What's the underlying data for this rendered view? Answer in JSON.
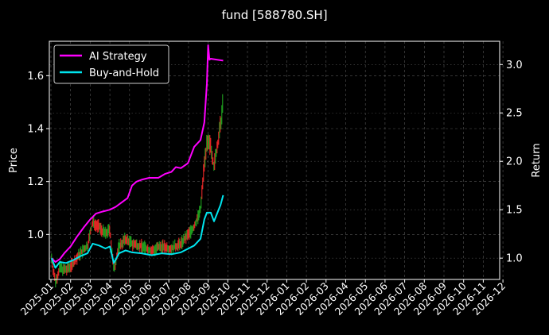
{
  "chart_data": {
    "type": "line",
    "title": "fund [588780.SH]",
    "ylabel_left": "Price",
    "ylabel_right": "Return",
    "left_axis": {
      "ylim": [
        0.83,
        1.73
      ],
      "ticks": [
        1.0,
        1.2,
        1.4,
        1.6
      ],
      "tick_labels": [
        "1.0",
        "1.2",
        "1.4",
        "1.6"
      ]
    },
    "right_axis": {
      "ylim": [
        0.78,
        3.24
      ],
      "ticks": [
        1.0,
        1.5,
        2.0,
        2.5,
        3.0
      ],
      "tick_labels": [
        "1.0",
        "1.5",
        "2.0",
        "2.5",
        "3.0"
      ]
    },
    "x_ticks": [
      "2025-01",
      "2025-02",
      "2025-03",
      "2025-04",
      "2025-05",
      "2025-06",
      "2025-07",
      "2025-08",
      "2025-09",
      "2025-10",
      "2025-11",
      "2025-12",
      "2026-01",
      "2026-02",
      "2026-03",
      "2026-04",
      "2026-05",
      "2026-06",
      "2026-07",
      "2026-08",
      "2026-09",
      "2026-10",
      "2026-11",
      "2026-12"
    ],
    "grid": true,
    "legend_position": "top-left",
    "colors": {
      "ai_strategy": "#ff00ff",
      "buy_and_hold": "#00e5ee",
      "candle_up": "#ff2a2a",
      "candle_down": "#22b022",
      "grid": "#555555"
    },
    "series": [
      {
        "name": "AI Strategy",
        "axis": "right",
        "points": [
          [
            "2025-01-02",
            1.0
          ],
          [
            "2025-01-08",
            0.96
          ],
          [
            "2025-01-15",
            0.99
          ],
          [
            "2025-01-22",
            1.05
          ],
          [
            "2025-02-01",
            1.12
          ],
          [
            "2025-02-10",
            1.22
          ],
          [
            "2025-02-20",
            1.32
          ],
          [
            "2025-03-01",
            1.4
          ],
          [
            "2025-03-10",
            1.46
          ],
          [
            "2025-03-20",
            1.48
          ],
          [
            "2025-04-01",
            1.5
          ],
          [
            "2025-04-10",
            1.53
          ],
          [
            "2025-04-20",
            1.58
          ],
          [
            "2025-04-28",
            1.62
          ],
          [
            "2025-05-05",
            1.75
          ],
          [
            "2025-05-12",
            1.79
          ],
          [
            "2025-05-20",
            1.81
          ],
          [
            "2025-06-01",
            1.83
          ],
          [
            "2025-06-15",
            1.83
          ],
          [
            "2025-06-25",
            1.87
          ],
          [
            "2025-07-05",
            1.89
          ],
          [
            "2025-07-12",
            1.94
          ],
          [
            "2025-07-20",
            1.93
          ],
          [
            "2025-07-31",
            1.98
          ],
          [
            "2025-08-10",
            2.15
          ],
          [
            "2025-08-20",
            2.22
          ],
          [
            "2025-08-26",
            2.4
          ],
          [
            "2025-08-30",
            2.8
          ],
          [
            "2025-09-01",
            3.2
          ],
          [
            "2025-09-03",
            3.05
          ],
          [
            "2025-09-05",
            3.06
          ],
          [
            "2025-09-15",
            3.05
          ],
          [
            "2025-09-24",
            3.04
          ]
        ]
      },
      {
        "name": "Buy-and-Hold",
        "axis": "right",
        "points": [
          [
            "2025-01-02",
            1.0
          ],
          [
            "2025-01-08",
            0.9
          ],
          [
            "2025-01-15",
            0.96
          ],
          [
            "2025-01-25",
            0.95
          ],
          [
            "2025-02-05",
            0.98
          ],
          [
            "2025-02-15",
            1.02
          ],
          [
            "2025-02-25",
            1.05
          ],
          [
            "2025-03-05",
            1.15
          ],
          [
            "2025-03-15",
            1.13
          ],
          [
            "2025-03-25",
            1.1
          ],
          [
            "2025-04-01",
            1.12
          ],
          [
            "2025-04-07",
            0.95
          ],
          [
            "2025-04-15",
            1.05
          ],
          [
            "2025-04-25",
            1.08
          ],
          [
            "2025-05-05",
            1.06
          ],
          [
            "2025-05-20",
            1.05
          ],
          [
            "2025-06-05",
            1.03
          ],
          [
            "2025-06-20",
            1.05
          ],
          [
            "2025-07-05",
            1.04
          ],
          [
            "2025-07-20",
            1.06
          ],
          [
            "2025-08-01",
            1.1
          ],
          [
            "2025-08-10",
            1.13
          ],
          [
            "2025-08-20",
            1.2
          ],
          [
            "2025-08-26",
            1.4
          ],
          [
            "2025-08-30",
            1.47
          ],
          [
            "2025-09-05",
            1.47
          ],
          [
            "2025-09-10",
            1.38
          ],
          [
            "2025-09-20",
            1.55
          ],
          [
            "2025-09-24",
            1.65
          ]
        ]
      }
    ]
  }
}
